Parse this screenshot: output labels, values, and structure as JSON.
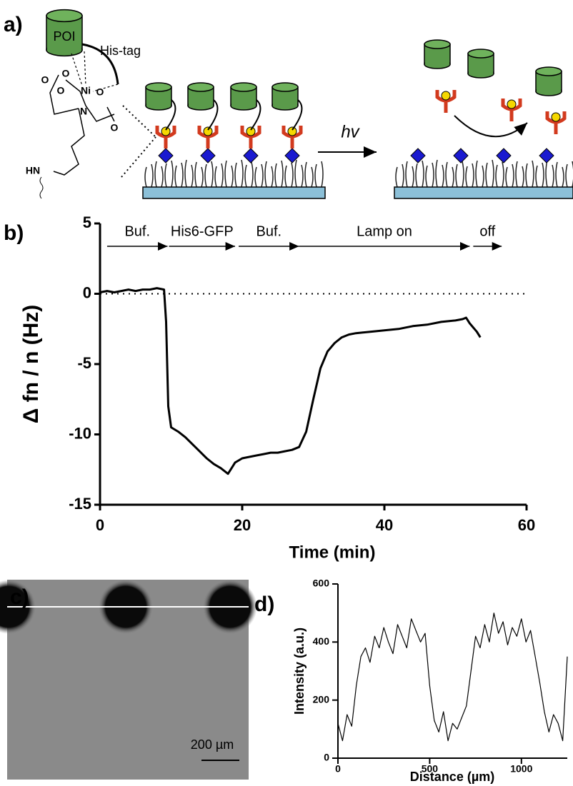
{
  "panel_labels": [
    "a)",
    "b)",
    "c)",
    "d)"
  ],
  "scheme": {
    "poi_label": "POI",
    "his_tag": "His-tag",
    "atoms": [
      "O",
      "O",
      "O",
      "Ni",
      "N",
      "O",
      "O",
      "HN"
    ],
    "hv": "hv"
  },
  "micrograph": {
    "scale_bar": "200 µm"
  },
  "chart_data": [
    {
      "type": "line",
      "x_label": "Time (min)",
      "y_label": "Δ fn / n (Hz)",
      "xlim": [
        0,
        60
      ],
      "xticks": [
        0,
        20,
        40,
        60
      ],
      "ylim": [
        -15,
        5
      ],
      "yticks": [
        -15,
        -10,
        -5,
        0,
        5
      ],
      "hline": 0,
      "color": "#000000",
      "annotations": [
        {
          "text": "Buf.",
          "x0": 1,
          "x1": 9.5
        },
        {
          "text": "His6-GFP",
          "x0": 9.7,
          "x1": 19
        },
        {
          "text": "Buf.",
          "x0": 19.5,
          "x1": 28
        },
        {
          "text": "Lamp on",
          "x0": 28,
          "x1": 52
        },
        {
          "text": "off",
          "x0": 52.5,
          "x1": 56.5
        }
      ],
      "x": [
        0,
        1,
        2,
        3,
        4,
        5,
        6,
        7,
        8,
        9,
        9.3,
        9.6,
        10,
        11,
        12,
        13,
        14,
        15,
        16,
        17,
        18,
        18.5,
        19,
        20,
        21,
        22,
        23,
        24,
        25,
        26,
        27,
        28,
        29,
        30,
        31,
        32,
        33,
        34,
        35,
        36,
        38,
        40,
        42,
        44,
        46,
        48,
        50,
        51,
        51.5,
        52,
        52.5,
        53,
        53.5
      ],
      "values": [
        0.1,
        0.2,
        0.1,
        0.2,
        0.3,
        0.2,
        0.3,
        0.3,
        0.4,
        0.3,
        -2,
        -8,
        -9.5,
        -9.8,
        -10.2,
        -10.7,
        -11.2,
        -11.7,
        -12.1,
        -12.4,
        -12.8,
        -12.4,
        -12,
        -11.7,
        -11.6,
        -11.5,
        -11.4,
        -11.3,
        -11.3,
        -11.2,
        -11.1,
        -10.9,
        -9.8,
        -7.5,
        -5.3,
        -4.1,
        -3.5,
        -3.1,
        -2.9,
        -2.8,
        -2.7,
        -2.6,
        -2.5,
        -2.3,
        -2.2,
        -2.0,
        -1.9,
        -1.8,
        -1.7,
        -2.1,
        -2.4,
        -2.7,
        -3.1
      ]
    },
    {
      "type": "line",
      "x_label": "Distance (µm)",
      "y_label": "Intensity (a.u.)",
      "xlim": [
        0,
        1250
      ],
      "xticks": [
        0,
        500,
        1000
      ],
      "ylim": [
        0,
        600
      ],
      "yticks": [
        0,
        200,
        400,
        600
      ],
      "color": "#000000",
      "x": [
        0,
        25,
        50,
        75,
        100,
        125,
        150,
        175,
        200,
        225,
        250,
        275,
        300,
        325,
        350,
        375,
        400,
        425,
        450,
        475,
        500,
        525,
        550,
        575,
        600,
        625,
        650,
        675,
        700,
        725,
        750,
        775,
        800,
        825,
        850,
        875,
        900,
        925,
        950,
        975,
        1000,
        1025,
        1050,
        1075,
        1100,
        1125,
        1150,
        1175,
        1200,
        1225,
        1250
      ],
      "values": [
        120,
        60,
        150,
        110,
        250,
        350,
        380,
        330,
        420,
        380,
        450,
        400,
        360,
        460,
        420,
        380,
        480,
        440,
        400,
        430,
        250,
        130,
        90,
        160,
        60,
        120,
        100,
        140,
        180,
        300,
        420,
        380,
        460,
        400,
        500,
        430,
        470,
        390,
        450,
        420,
        480,
        400,
        440,
        350,
        260,
        160,
        90,
        150,
        120,
        60,
        350
      ]
    }
  ]
}
